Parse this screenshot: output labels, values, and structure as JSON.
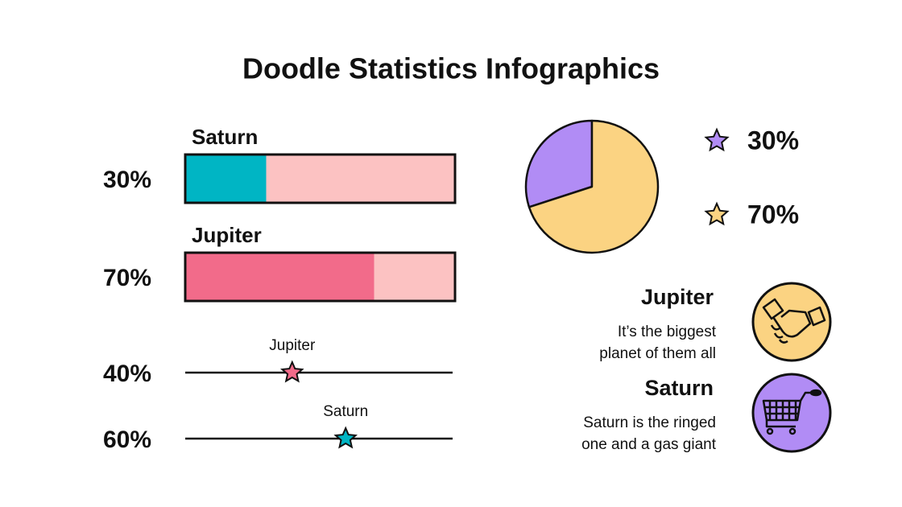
{
  "title": "Doodle Statistics Infographics",
  "chart_data": [
    {
      "type": "bar",
      "categories": [
        "Saturn",
        "Jupiter"
      ],
      "values": [
        30,
        70
      ],
      "value_labels": [
        "30%",
        "70%"
      ],
      "colors": [
        "#00b5c4",
        "#f26b8a"
      ],
      "track_color": "#fcc2c2",
      "xlim": [
        0,
        100
      ]
    },
    {
      "type": "slider",
      "categories": [
        "Jupiter",
        "Saturn"
      ],
      "values": [
        40,
        60
      ],
      "value_labels": [
        "40%",
        "60%"
      ],
      "colors": [
        "#f26b8a",
        "#00b5c4"
      ],
      "xlim": [
        0,
        100
      ]
    },
    {
      "type": "pie",
      "values": [
        30,
        70
      ],
      "value_labels": [
        "30%",
        "70%"
      ],
      "colors": [
        "#b18cf5",
        "#fbd382"
      ]
    }
  ],
  "items": [
    {
      "title": "Jupiter",
      "lines": [
        "It’s the biggest",
        "planet of them all"
      ]
    },
    {
      "title": "Saturn",
      "lines": [
        "Saturn is the ringed",
        "one and a gas giant"
      ]
    }
  ]
}
